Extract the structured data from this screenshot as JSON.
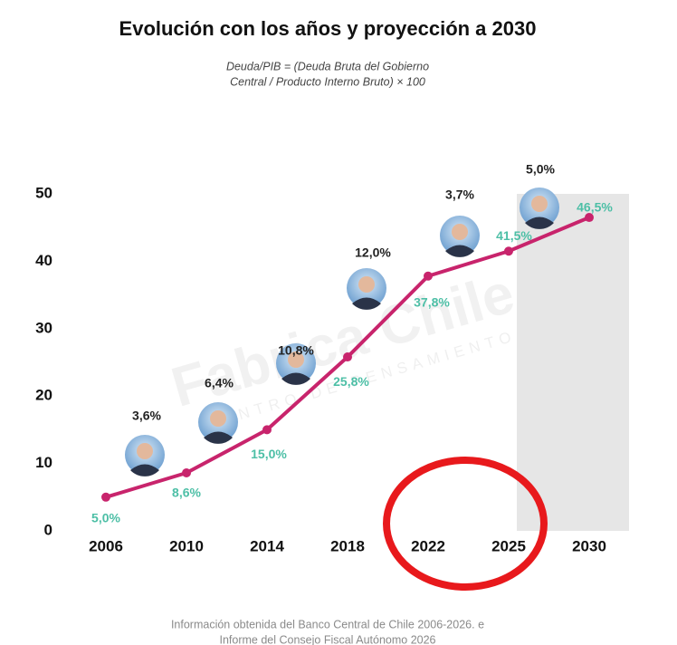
{
  "chart_data": {
    "type": "line",
    "title": "Evolución con los años y proyección a 2030",
    "subtitle": [
      "Deuda/PIB = (Deuda Bruta del Gobierno",
      "Central / Producto Interno Bruto) × 100"
    ],
    "categories": [
      "2006",
      "2010",
      "2014",
      "2018",
      "2022",
      "2025",
      "2030"
    ],
    "values": [
      5.0,
      8.6,
      15.0,
      25.8,
      37.8,
      41.5,
      46.5
    ],
    "value_labels": [
      "5,0%",
      "8,6%",
      "15,0%",
      "25,8%",
      "37,8%",
      "41,5%",
      "46,5%"
    ],
    "color": "#c8246c",
    "label_color": "#4dbfa6",
    "annotations": [
      "3,6%",
      "6,4%",
      "10,8%",
      "12,0%",
      "3,7%",
      "5,0%"
    ],
    "ylim": [
      0,
      50
    ],
    "yticks": [
      0,
      10,
      20,
      30,
      40,
      50
    ],
    "grid": false,
    "watermark": [
      "Fabrica Chile",
      "CENTRO DE PENSAMIENTO"
    ],
    "footer": [
      "Información obtenida del Banco Central de Chile 2006-2026. e",
      "Informe del Consejo Fiscal Autónomo 2026"
    ]
  }
}
